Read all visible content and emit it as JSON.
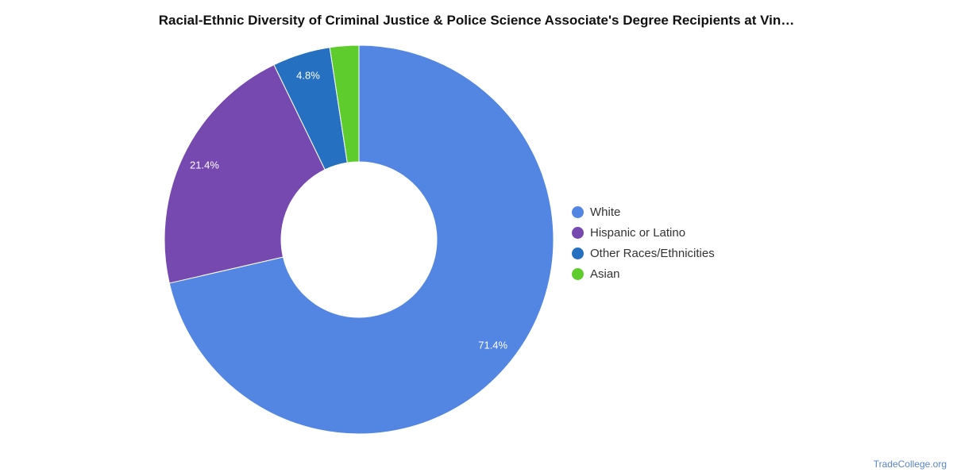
{
  "chart_data": {
    "type": "pie",
    "title": "Racial-Ethnic Diversity of Criminal Justice & Police Science Associate's Degree Recipients at Vin…",
    "donut": true,
    "categories": [
      "White",
      "Hispanic or Latino",
      "Other Races/Ethnicities",
      "Asian"
    ],
    "values": [
      71.4,
      21.4,
      4.8,
      2.4
    ],
    "data_labels": [
      "71.4%",
      "21.4%",
      "4.8%",
      ""
    ],
    "colors": [
      "#5385e2",
      "#7649b0",
      "#2570c0",
      "#5fcc2d"
    ],
    "legend_position": "right"
  },
  "source": "TradeCollege.org"
}
